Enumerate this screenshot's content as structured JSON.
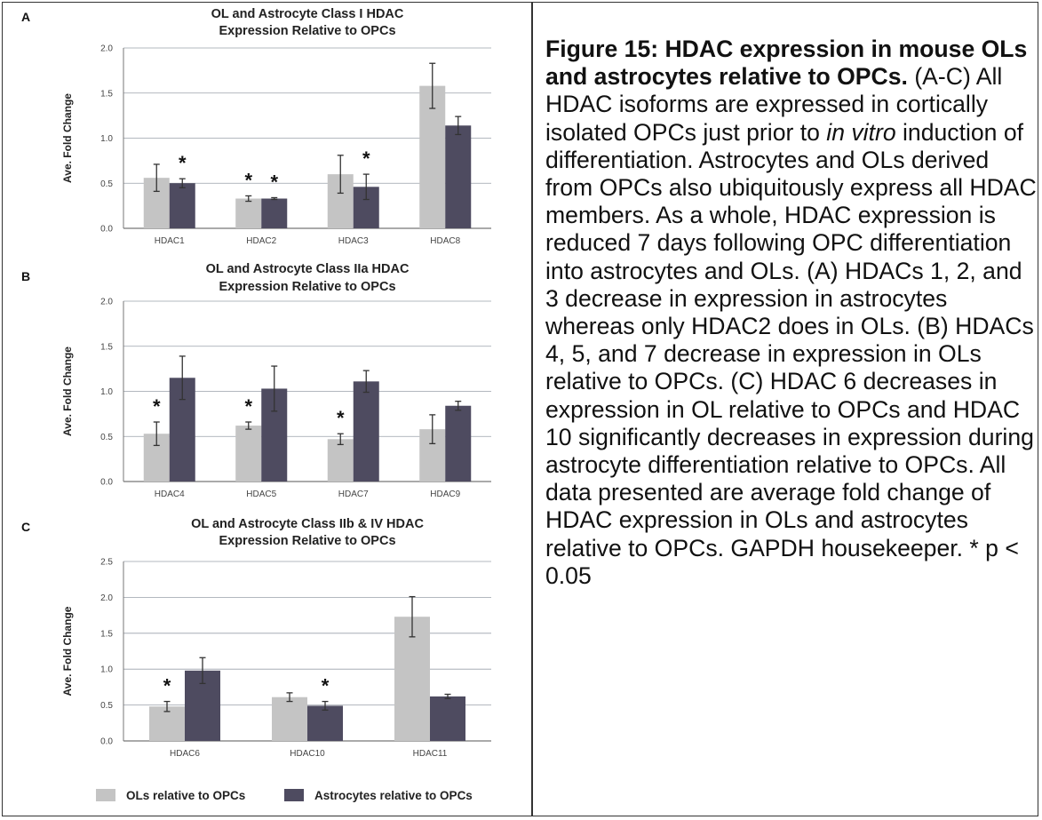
{
  "colors": {
    "ols": "#c4c4c4",
    "astro": "#4e4b60",
    "grid": "#9aa0aa",
    "err": "#333333"
  },
  "legend": {
    "ols_label": "OLs relative to OPCs",
    "astro_label": "Astrocytes relative to OPCs"
  },
  "caption": {
    "title": "Figure 15: HDAC expression in mouse OLs and astrocytes relative to OPCs.",
    "body_1": " (A-C) All HDAC isoforms are expressed in cortically isolated OPCs just prior to ",
    "italic": "in vitro",
    "body_2": " induction of differentiation. Astrocytes and OLs derived from OPCs also ubiquitously express all HDAC members. As a whole, HDAC expression is reduced 7 days following OPC differentiation into astrocytes and OLs. (A) HDACs 1, 2, and 3 decrease in expression in astrocytes whereas only HDAC2 does in OLs. (B) HDACs 4, 5, and 7 decrease in expression in OLs relative to OPCs. (C) HDAC 6 decreases in expression in OL relative to OPCs and HDAC 10 significantly decreases in expression during astrocyte differentiation relative to OPCs. All data presented are average fold change of HDAC expression in OLs and astrocytes relative to OPCs. GAPDH housekeeper. * p < 0.05"
  },
  "chart_data": [
    {
      "panel": "A",
      "type": "bar",
      "title_lines": [
        "OL and Astrocyte Class I HDAC",
        "Expression Relative to OPCs"
      ],
      "ylabel": "Ave. Fold Change",
      "ylim": [
        0,
        2.0
      ],
      "yticks": [
        "0.0",
        "0.5",
        "1.0",
        "1.5",
        "2.0"
      ],
      "categories": [
        "HDAC1",
        "HDAC2",
        "HDAC3",
        "HDAC8"
      ],
      "series": [
        {
          "name": "OLs relative to OPCs",
          "values": [
            0.56,
            0.33,
            0.6,
            1.58
          ],
          "errors": [
            0.15,
            0.03,
            0.21,
            0.25
          ]
        },
        {
          "name": "Astrocytes relative to OPCs",
          "values": [
            0.5,
            0.33,
            0.46,
            1.14
          ],
          "errors": [
            0.05,
            0.01,
            0.14,
            0.1
          ]
        }
      ],
      "significance": [
        [
          "",
          "*"
        ],
        [
          "*",
          "*"
        ],
        [
          "",
          "*"
        ],
        [
          "",
          ""
        ]
      ]
    },
    {
      "panel": "B",
      "type": "bar",
      "title_lines": [
        "OL and Astrocyte Class IIa HDAC",
        "Expression Relative to OPCs"
      ],
      "ylabel": "Ave. Fold Change",
      "ylim": [
        0,
        2.0
      ],
      "yticks": [
        "0.0",
        "0.5",
        "1.0",
        "1.5",
        "2.0"
      ],
      "categories": [
        "HDAC4",
        "HDAC5",
        "HDAC7",
        "HDAC9"
      ],
      "series": [
        {
          "name": "OLs relative to OPCs",
          "values": [
            0.53,
            0.62,
            0.47,
            0.58
          ],
          "errors": [
            0.13,
            0.04,
            0.06,
            0.16
          ]
        },
        {
          "name": "Astrocytes relative to OPCs",
          "values": [
            1.15,
            1.03,
            1.11,
            0.84
          ],
          "errors": [
            0.24,
            0.25,
            0.12,
            0.05
          ]
        }
      ],
      "significance": [
        [
          "*",
          ""
        ],
        [
          "*",
          ""
        ],
        [
          "*",
          ""
        ],
        [
          "",
          ""
        ]
      ]
    },
    {
      "panel": "C",
      "type": "bar",
      "title_lines": [
        "OL and Astrocyte Class IIb & IV HDAC",
        "Expression Relative to OPCs"
      ],
      "ylabel": "Ave. Fold Change",
      "ylim": [
        0,
        2.5
      ],
      "yticks": [
        "0.0",
        "0.5",
        "1.0",
        "1.5",
        "2.0",
        "2.5"
      ],
      "categories": [
        "HDAC6",
        "HDAC10",
        "HDAC11"
      ],
      "series": [
        {
          "name": "OLs relative to OPCs",
          "values": [
            0.48,
            0.61,
            1.73
          ],
          "errors": [
            0.07,
            0.06,
            0.28
          ]
        },
        {
          "name": "Astrocytes relative to OPCs",
          "values": [
            0.98,
            0.49,
            0.62
          ],
          "errors": [
            0.18,
            0.06,
            0.03
          ]
        }
      ],
      "significance": [
        [
          "*",
          ""
        ],
        [
          "",
          "*"
        ],
        [
          "",
          ""
        ]
      ]
    }
  ]
}
